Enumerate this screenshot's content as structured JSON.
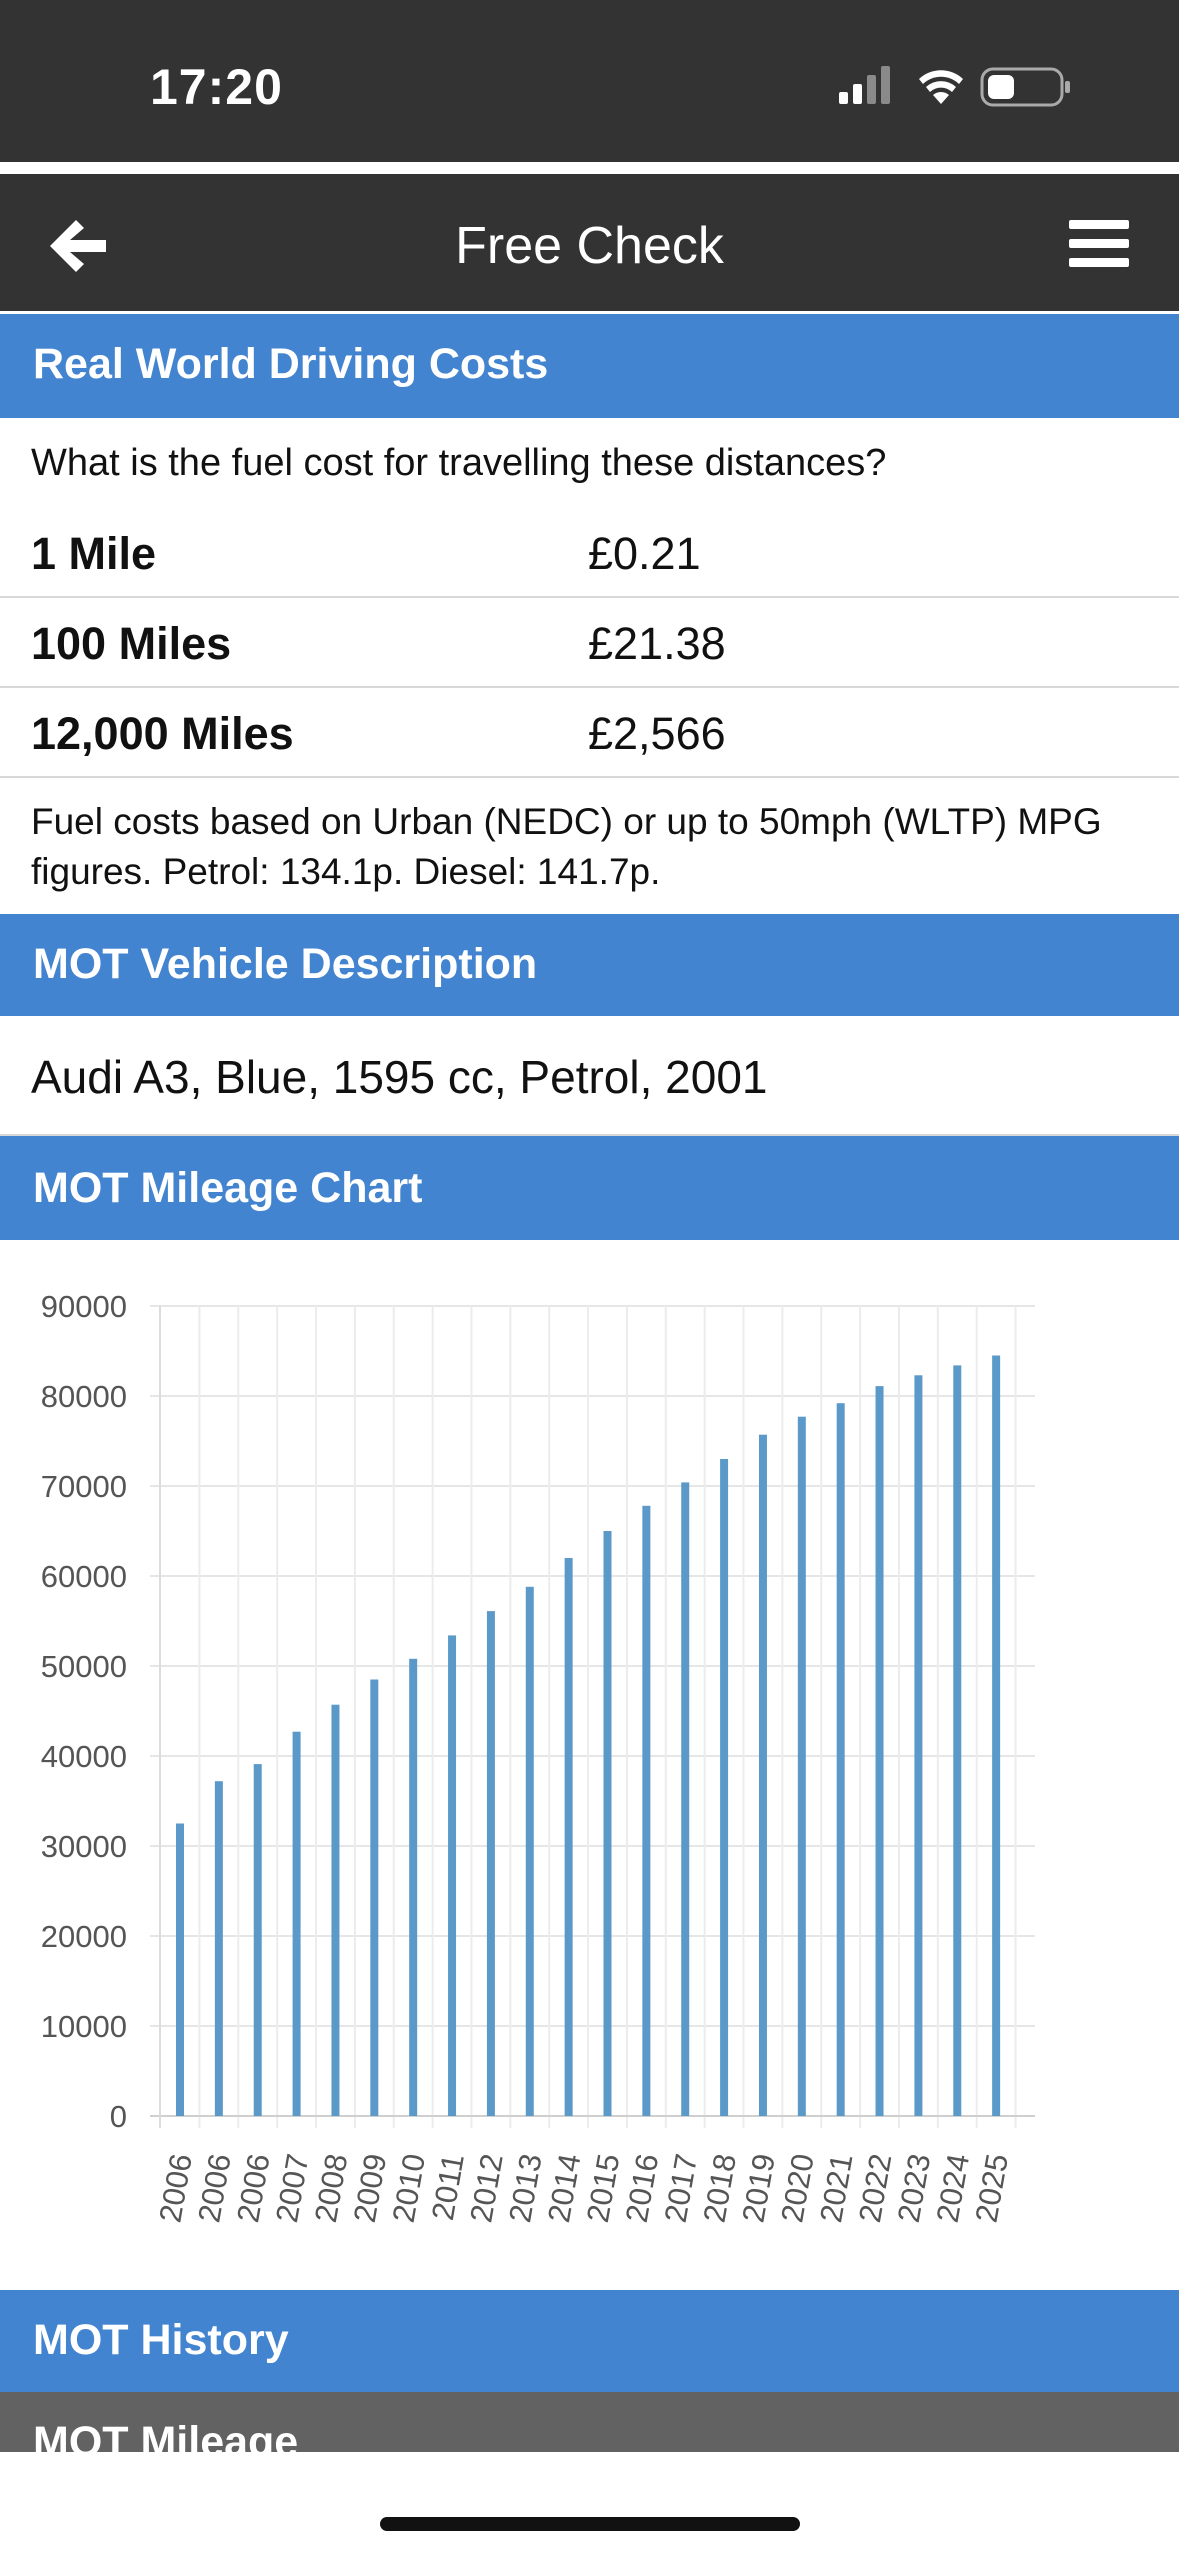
{
  "status_bar": {
    "time": "17:20",
    "icons": [
      "cellular-signal-icon",
      "wifi-icon",
      "battery-icon"
    ]
  },
  "header": {
    "title": "Free Check",
    "back_icon": "back-arrow-icon",
    "menu_icon": "hamburger-menu-icon",
    "background": "#333333"
  },
  "colors": {
    "section_blue": "#4384d0",
    "section_gray": "#626262",
    "bar": "#5b9ac8"
  },
  "driving_costs": {
    "heading": "Real World Driving Costs",
    "question": "What is the fuel cost for travelling these distances?",
    "rows": [
      {
        "distance": "1 Mile",
        "cost": "£0.21"
      },
      {
        "distance": "100 Miles",
        "cost": "£21.38"
      },
      {
        "distance": "12,000 Miles",
        "cost": "£2,566"
      }
    ],
    "note": "Fuel costs based on Urban (NEDC) or up to 50mph (WLTP) MPG figures. Petrol: 134.1p. Diesel: 141.7p."
  },
  "vehicle_description": {
    "heading": "MOT Vehicle Description",
    "text": "Audi A3, Blue, 1595 cc, Petrol, 2001"
  },
  "mileage_chart": {
    "heading": "MOT Mileage Chart"
  },
  "chart_data": {
    "type": "bar",
    "title": "",
    "xlabel": "",
    "ylabel": "",
    "ylim": [
      0,
      90000
    ],
    "yticks": [
      0,
      10000,
      20000,
      30000,
      40000,
      50000,
      60000,
      70000,
      80000,
      90000
    ],
    "grid": true,
    "categories": [
      "2006",
      "2006",
      "2006",
      "2007",
      "2008",
      "2009",
      "2010",
      "2011",
      "2012",
      "2013",
      "2014",
      "2015",
      "2016",
      "2017",
      "2018",
      "2019",
      "2020",
      "2021",
      "2022",
      "2023",
      "2024",
      "2025"
    ],
    "values": [
      32500,
      37200,
      39100,
      42700,
      45700,
      48500,
      50800,
      53400,
      56100,
      58800,
      62000,
      65000,
      67800,
      70400,
      73000,
      75700,
      77700,
      79200,
      81100,
      82300,
      83400,
      84500
    ]
  },
  "mot_history": {
    "heading": "MOT History"
  },
  "mot_mileage": {
    "heading": "MOT Mileage"
  }
}
